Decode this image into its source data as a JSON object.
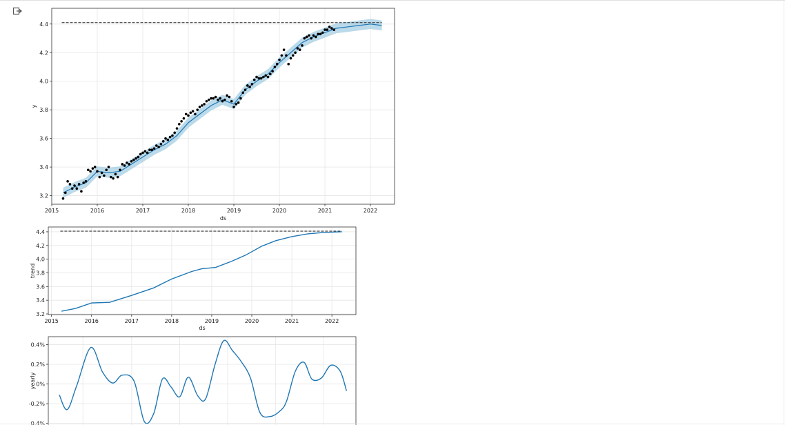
{
  "page": {
    "output_icon": "output-arrow-icon"
  },
  "chart_data": [
    {
      "type": "line",
      "panel": "forecast",
      "xlabel": "ds",
      "ylabel": "y",
      "xlim": [
        2015.0,
        2022.53
      ],
      "ylim": [
        3.14,
        4.51
      ],
      "x_ticks": [
        "2015",
        "2016",
        "2017",
        "2018",
        "2019",
        "2020",
        "2021",
        "2022"
      ],
      "y_ticks": [
        "3.2",
        "3.4",
        "3.6",
        "3.8",
        "4.0",
        "4.2",
        "4.4"
      ],
      "grid": true,
      "cap": 4.41,
      "cap_x": [
        2015.22,
        2022.25
      ],
      "series": [
        {
          "role": "observed",
          "color": "#000000",
          "x": [
            2015.25,
            2015.3,
            2015.35,
            2015.4,
            2015.45,
            2015.5,
            2015.55,
            2015.6,
            2015.65,
            2015.7,
            2015.75,
            2015.8,
            2015.85,
            2015.9,
            2015.95,
            2016.0,
            2016.05,
            2016.1,
            2016.15,
            2016.2,
            2016.25,
            2016.3,
            2016.35,
            2016.4,
            2016.45,
            2016.5,
            2016.55,
            2016.6,
            2016.65,
            2016.7,
            2016.75,
            2016.8,
            2016.85,
            2016.9,
            2016.95,
            2017.0,
            2017.05,
            2017.1,
            2017.15,
            2017.2,
            2017.25,
            2017.3,
            2017.35,
            2017.4,
            2017.45,
            2017.5,
            2017.55,
            2017.6,
            2017.65,
            2017.7,
            2017.75,
            2017.8,
            2017.85,
            2017.9,
            2017.95,
            2018.0,
            2018.05,
            2018.1,
            2018.15,
            2018.2,
            2018.25,
            2018.3,
            2018.35,
            2018.4,
            2018.45,
            2018.5,
            2018.55,
            2018.6,
            2018.65,
            2018.7,
            2018.75,
            2018.8,
            2018.85,
            2018.9,
            2018.95,
            2019.0,
            2019.05,
            2019.1,
            2019.15,
            2019.2,
            2019.25,
            2019.3,
            2019.35,
            2019.4,
            2019.45,
            2019.5,
            2019.55,
            2019.6,
            2019.65,
            2019.7,
            2019.75,
            2019.8,
            2019.85,
            2019.9,
            2019.95,
            2020.0,
            2020.05,
            2020.1,
            2020.15,
            2020.2,
            2020.25,
            2020.3,
            2020.35,
            2020.4,
            2020.45,
            2020.5,
            2020.55,
            2020.6,
            2020.65,
            2020.7,
            2020.75,
            2020.8,
            2020.85,
            2020.9,
            2020.95,
            2021.0,
            2021.05,
            2021.1,
            2021.15,
            2021.2
          ],
          "y": [
            3.18,
            3.22,
            3.3,
            3.28,
            3.25,
            3.27,
            3.25,
            3.28,
            3.23,
            3.29,
            3.3,
            3.38,
            3.37,
            3.39,
            3.4,
            3.37,
            3.33,
            3.36,
            3.34,
            3.38,
            3.4,
            3.33,
            3.32,
            3.35,
            3.33,
            3.38,
            3.42,
            3.41,
            3.43,
            3.42,
            3.44,
            3.45,
            3.46,
            3.47,
            3.49,
            3.5,
            3.51,
            3.5,
            3.52,
            3.52,
            3.53,
            3.55,
            3.54,
            3.56,
            3.58,
            3.6,
            3.59,
            3.61,
            3.62,
            3.64,
            3.67,
            3.7,
            3.72,
            3.74,
            3.77,
            3.76,
            3.78,
            3.79,
            3.77,
            3.8,
            3.82,
            3.83,
            3.84,
            3.86,
            3.87,
            3.88,
            3.88,
            3.89,
            3.87,
            3.88,
            3.86,
            3.87,
            3.9,
            3.89,
            3.86,
            3.82,
            3.84,
            3.85,
            3.88,
            3.92,
            3.94,
            3.97,
            3.96,
            3.98,
            4.01,
            4.03,
            4.02,
            4.02,
            4.03,
            4.04,
            4.03,
            4.05,
            4.07,
            4.1,
            4.12,
            4.15,
            4.18,
            4.22,
            4.18,
            4.12,
            4.16,
            4.18,
            4.2,
            4.23,
            4.22,
            4.25,
            4.3,
            4.31,
            4.32,
            4.3,
            4.32,
            4.31,
            4.33,
            4.33,
            4.34,
            4.36,
            4.36,
            4.38,
            4.37,
            4.36
          ]
        },
        {
          "role": "forecast",
          "color": "#1f77b4",
          "band_color": "#9ecae1",
          "x": [
            2015.25,
            2015.5,
            2015.75,
            2016.0,
            2016.25,
            2016.5,
            2016.75,
            2017.0,
            2017.25,
            2017.5,
            2017.75,
            2018.0,
            2018.25,
            2018.5,
            2018.75,
            2019.0,
            2019.25,
            2019.5,
            2019.75,
            2020.0,
            2020.25,
            2020.5,
            2020.75,
            2021.0,
            2021.25,
            2021.5,
            2021.75,
            2022.0,
            2022.25
          ],
          "y": [
            3.22,
            3.26,
            3.29,
            3.37,
            3.36,
            3.37,
            3.42,
            3.47,
            3.52,
            3.56,
            3.62,
            3.71,
            3.77,
            3.83,
            3.87,
            3.84,
            3.94,
            4.0,
            4.05,
            4.13,
            4.2,
            4.27,
            4.31,
            4.34,
            4.37,
            4.38,
            4.39,
            4.4,
            4.39
          ],
          "band": 0.035
        }
      ]
    },
    {
      "type": "line",
      "panel": "trend",
      "xlabel": "ds",
      "ylabel": "trend",
      "xlim": [
        2014.92,
        2022.6
      ],
      "ylim": [
        3.19,
        4.47
      ],
      "x_ticks": [
        "2015",
        "2016",
        "2017",
        "2018",
        "2019",
        "2020",
        "2021",
        "2022"
      ],
      "y_ticks": [
        "3.2",
        "3.4",
        "3.6",
        "3.8",
        "4.0",
        "4.2",
        "4.4"
      ],
      "grid": true,
      "cap": 4.41,
      "cap_x": [
        2015.22,
        2022.25
      ],
      "series": [
        {
          "color": "#1f77b4",
          "x": [
            2015.25,
            2015.6,
            2016.0,
            2016.45,
            2017.0,
            2017.55,
            2018.0,
            2018.5,
            2018.75,
            2019.1,
            2019.5,
            2019.85,
            2020.25,
            2020.6,
            2021.0,
            2021.4,
            2021.8,
            2022.25
          ],
          "y": [
            3.24,
            3.28,
            3.36,
            3.37,
            3.47,
            3.58,
            3.71,
            3.82,
            3.86,
            3.88,
            3.97,
            4.06,
            4.19,
            4.27,
            4.33,
            4.37,
            4.39,
            4.4
          ]
        }
      ]
    },
    {
      "type": "line",
      "panel": "yearly",
      "ylabel": "yearly",
      "ylim": [
        -0.43,
        0.48
      ],
      "y_ticks": [
        "0.4%",
        "0.2%",
        "0%",
        "-0.2%",
        "-0.4%"
      ],
      "grid": true,
      "series": [
        {
          "color": "#1f77b4",
          "x": [
            0,
            10,
            22,
            40,
            55,
            68,
            80,
            95,
            108,
            120,
            131,
            142,
            153,
            164,
            176,
            186,
            198,
            209,
            220,
            231,
            243,
            255,
            268,
            281,
            289,
            300,
            311,
            321,
            333,
            345,
            357,
            365
          ],
          "y": [
            -0.11,
            -0.26,
            -0.02,
            0.37,
            0.12,
            0.01,
            0.09,
            0.03,
            -0.38,
            -0.3,
            0.05,
            -0.03,
            -0.13,
            0.07,
            -0.12,
            -0.15,
            0.2,
            0.44,
            0.34,
            0.23,
            0.06,
            -0.29,
            -0.33,
            -0.27,
            -0.17,
            0.13,
            0.22,
            0.05,
            0.06,
            0.19,
            0.13,
            -0.07
          ]
        }
      ]
    }
  ]
}
